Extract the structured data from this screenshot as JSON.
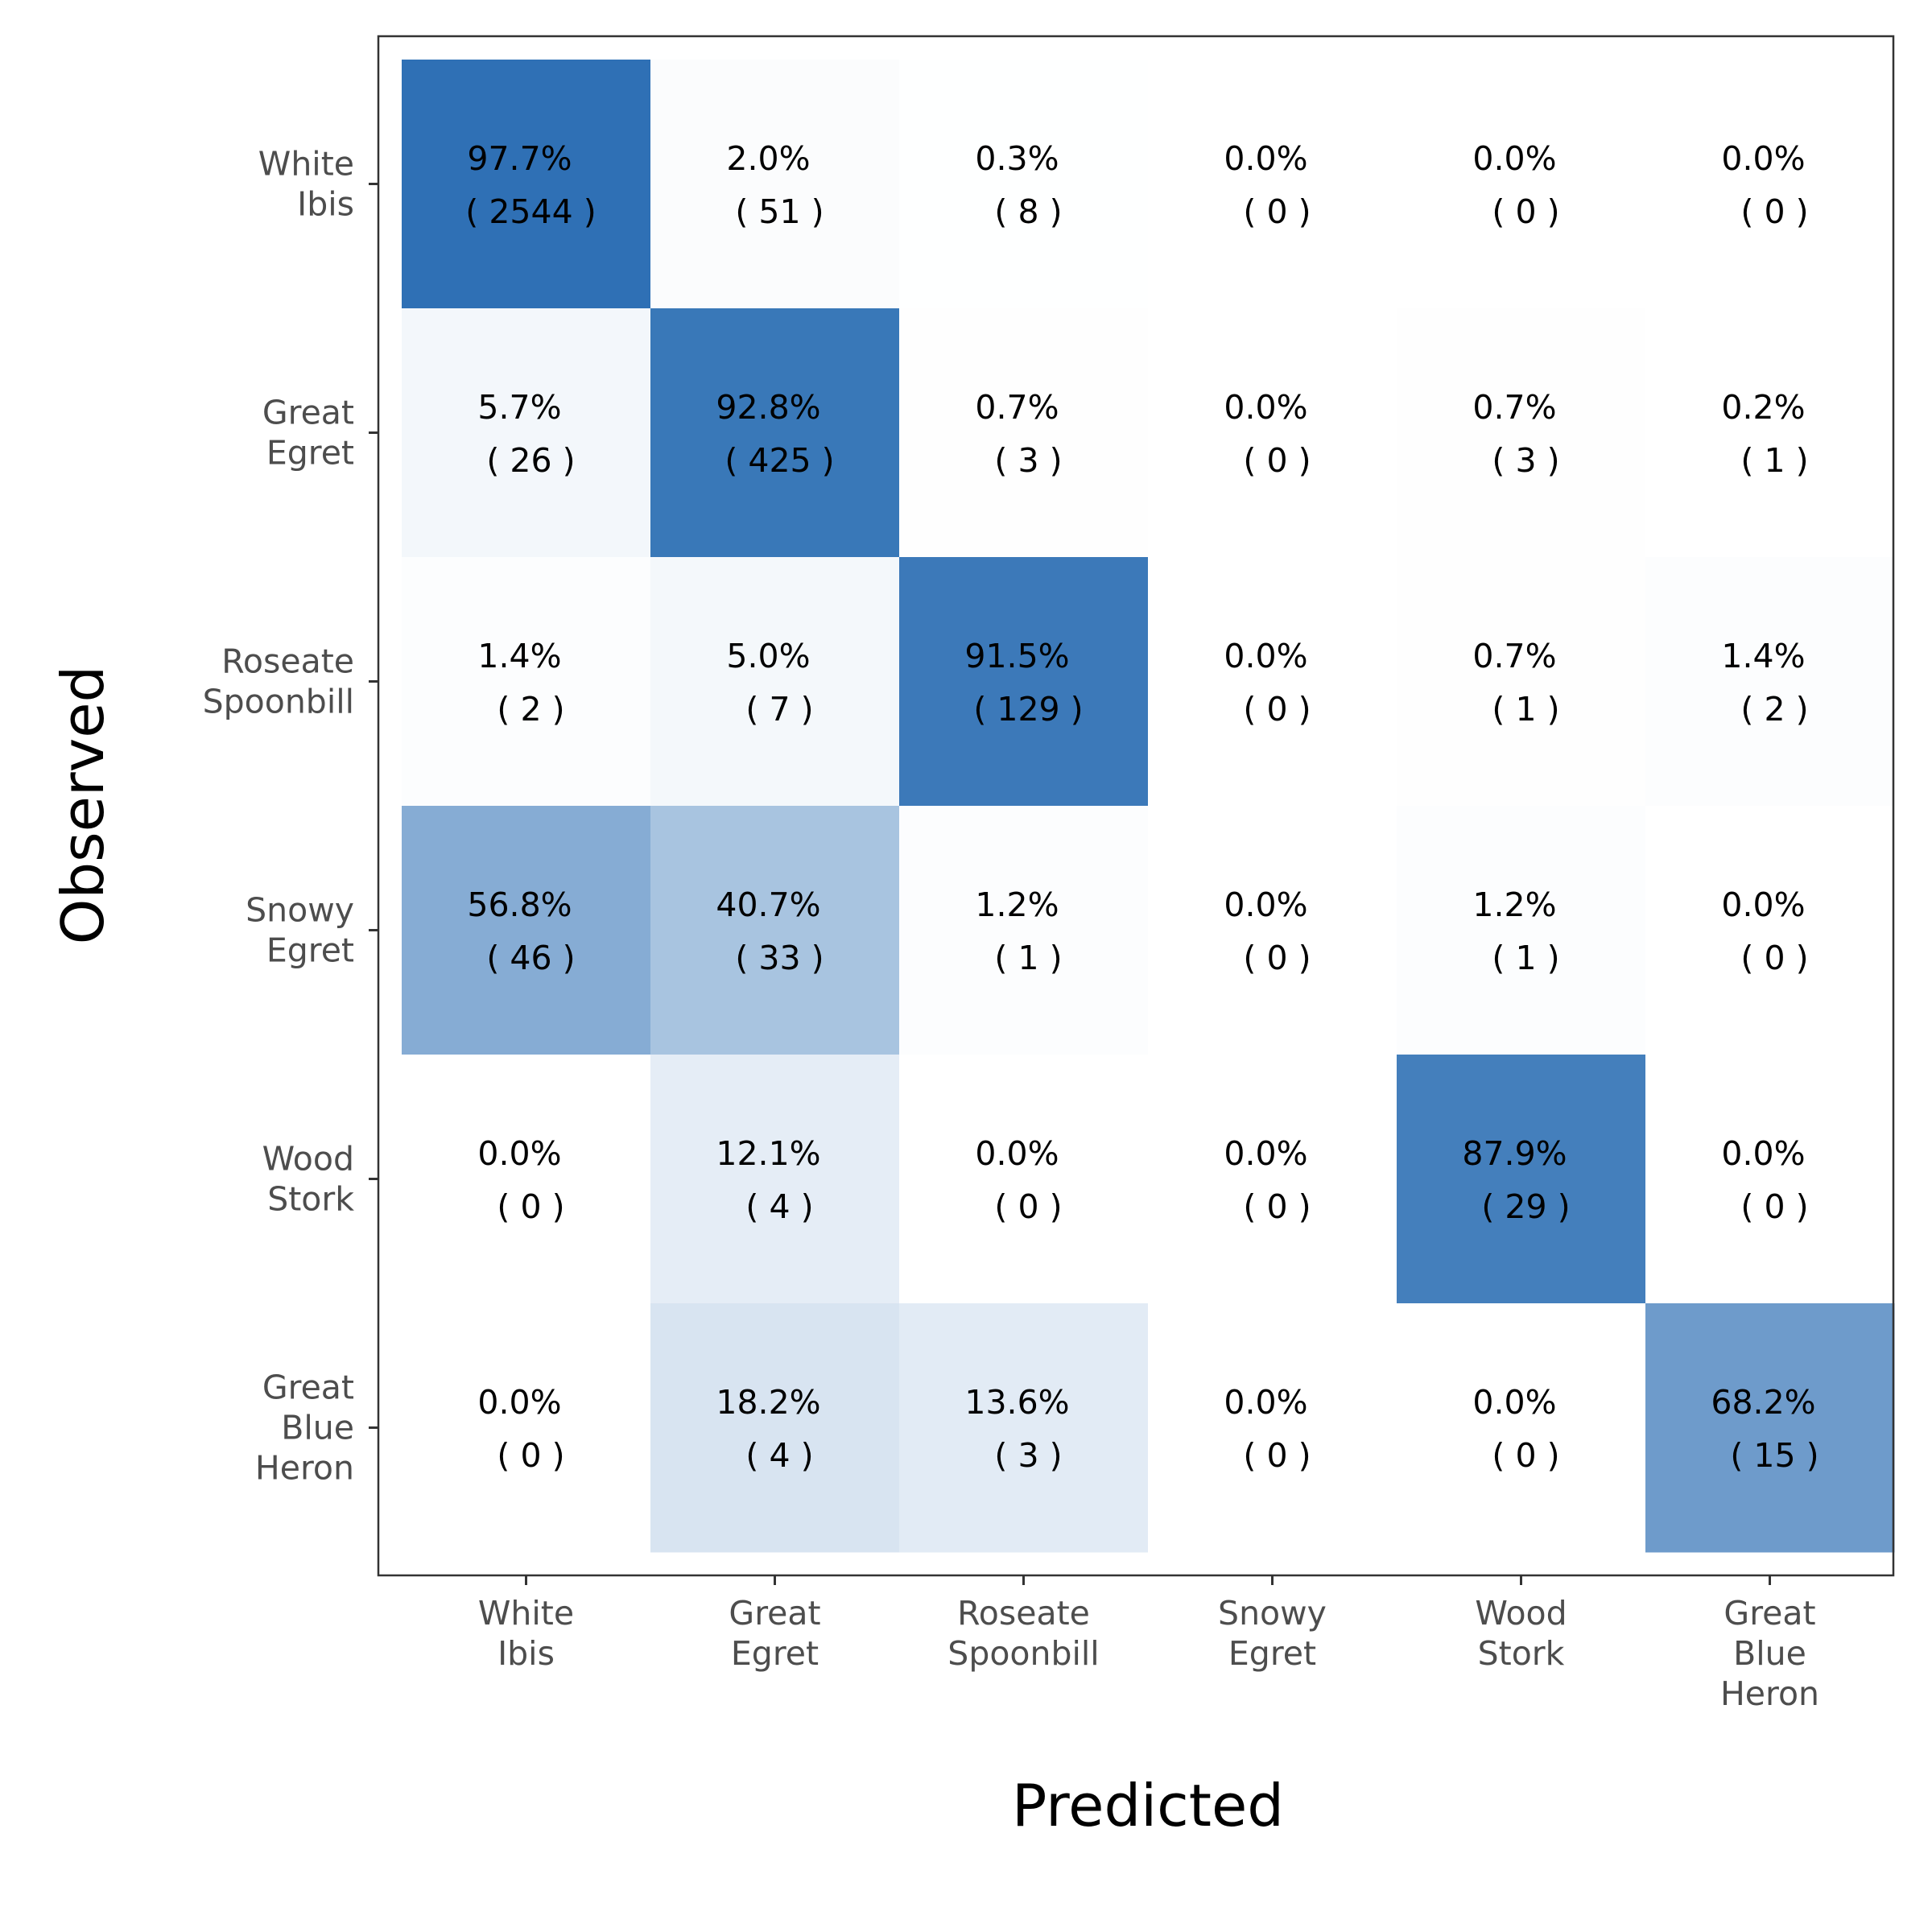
{
  "chart_data": {
    "type": "heatmap",
    "xlabel": "Predicted",
    "ylabel": "Observed",
    "categories": [
      [
        "White",
        "Ibis"
      ],
      [
        "Great",
        "Egret"
      ],
      [
        "Roseate",
        "Spoonbill"
      ],
      [
        "Snowy",
        "Egret"
      ],
      [
        "Wood",
        "Stork"
      ],
      [
        "Great",
        "Blue",
        "Heron"
      ]
    ],
    "percent_labels": [
      [
        "97.7%",
        "2.0%",
        "0.3%",
        "0.0%",
        "0.0%",
        "0.0%"
      ],
      [
        "5.7%",
        "92.8%",
        "0.7%",
        "0.0%",
        "0.7%",
        "0.2%"
      ],
      [
        "1.4%",
        "5.0%",
        "91.5%",
        "0.0%",
        "0.7%",
        "1.4%"
      ],
      [
        "56.8%",
        "40.7%",
        "1.2%",
        "0.0%",
        "1.2%",
        "0.0%"
      ],
      [
        "0.0%",
        "12.1%",
        "0.0%",
        "0.0%",
        "87.9%",
        "0.0%"
      ],
      [
        "0.0%",
        "18.2%",
        "13.6%",
        "0.0%",
        "0.0%",
        "68.2%"
      ]
    ],
    "count_labels": [
      [
        "( 2544 )",
        "( 51 )",
        "( 8 )",
        "( 0 )",
        "( 0 )",
        "( 0 )"
      ],
      [
        "( 26 )",
        "( 425 )",
        "( 3 )",
        "( 0 )",
        "( 3 )",
        "( 1 )"
      ],
      [
        "( 2 )",
        "( 7 )",
        "( 129 )",
        "( 0 )",
        "( 1 )",
        "( 2 )"
      ],
      [
        "( 46 )",
        "( 33 )",
        "( 1 )",
        "( 0 )",
        "( 1 )",
        "( 0 )"
      ],
      [
        "( 0 )",
        "( 4 )",
        "( 0 )",
        "( 0 )",
        "( 29 )",
        "( 0 )"
      ],
      [
        "( 0 )",
        "( 4 )",
        "( 3 )",
        "( 0 )",
        "( 0 )",
        "( 15 )"
      ]
    ],
    "values_percent": [
      [
        97.7,
        2.0,
        0.3,
        0.0,
        0.0,
        0.0
      ],
      [
        5.7,
        92.8,
        0.7,
        0.0,
        0.7,
        0.2
      ],
      [
        1.4,
        5.0,
        91.5,
        0.0,
        0.7,
        1.4
      ],
      [
        56.8,
        40.7,
        1.2,
        0.0,
        1.2,
        0.0
      ],
      [
        0.0,
        12.1,
        0.0,
        0.0,
        87.9,
        0.0
      ],
      [
        0.0,
        18.2,
        13.6,
        0.0,
        0.0,
        68.2
      ]
    ],
    "counts": [
      [
        2544,
        51,
        8,
        0,
        0,
        0
      ],
      [
        26,
        425,
        3,
        0,
        3,
        1
      ],
      [
        2,
        7,
        129,
        0,
        1,
        2
      ],
      [
        46,
        33,
        1,
        0,
        1,
        0
      ],
      [
        0,
        4,
        0,
        0,
        29,
        0
      ],
      [
        0,
        4,
        3,
        0,
        0,
        15
      ]
    ],
    "color_low": "#ffffff",
    "color_high": "#2a6db3",
    "grid": false,
    "legend": "none"
  }
}
